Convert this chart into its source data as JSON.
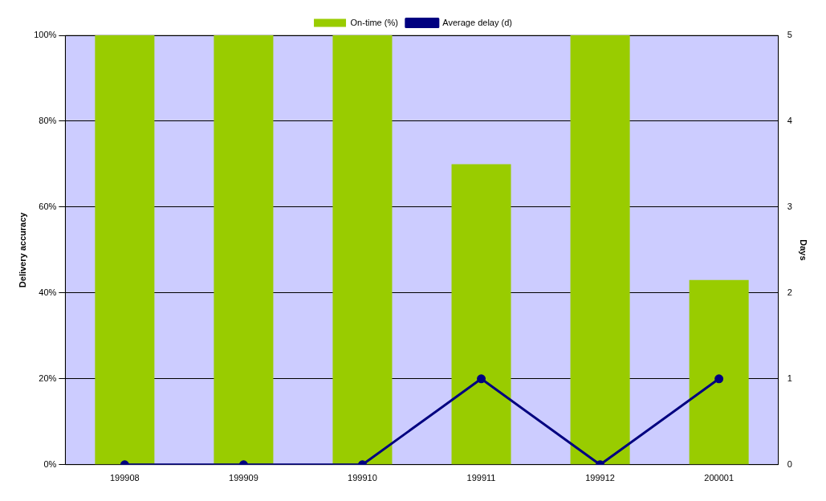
{
  "chart_data": {
    "type": "bar",
    "categories": [
      "199908",
      "199909",
      "199910",
      "199911",
      "199912",
      "200001"
    ],
    "series": [
      {
        "name": "On-time (%)",
        "color": "#99cc00",
        "values": [
          100,
          100,
          100,
          70,
          100,
          43
        ]
      },
      {
        "name": "Average delay (d)",
        "type": "line",
        "axis": "y2",
        "color": "#000080",
        "values": [
          0,
          0,
          0,
          1,
          0,
          1
        ]
      }
    ],
    "ylabel": "Delivery accuracy",
    "y2label": "Days",
    "ylim": [
      0,
      100
    ],
    "yticks": [
      {
        "value": 0,
        "label": "0%"
      },
      {
        "value": 20,
        "label": "20%"
      },
      {
        "value": 40,
        "label": "40%"
      },
      {
        "value": 60,
        "label": "60%"
      },
      {
        "value": 80,
        "label": "80%"
      },
      {
        "value": 100,
        "label": "100%"
      }
    ],
    "y2lim": [
      0,
      5
    ],
    "y2ticks": [
      0,
      1,
      2,
      3,
      4,
      5
    ],
    "grid": "y",
    "legend": "top",
    "marker": "circle"
  }
}
